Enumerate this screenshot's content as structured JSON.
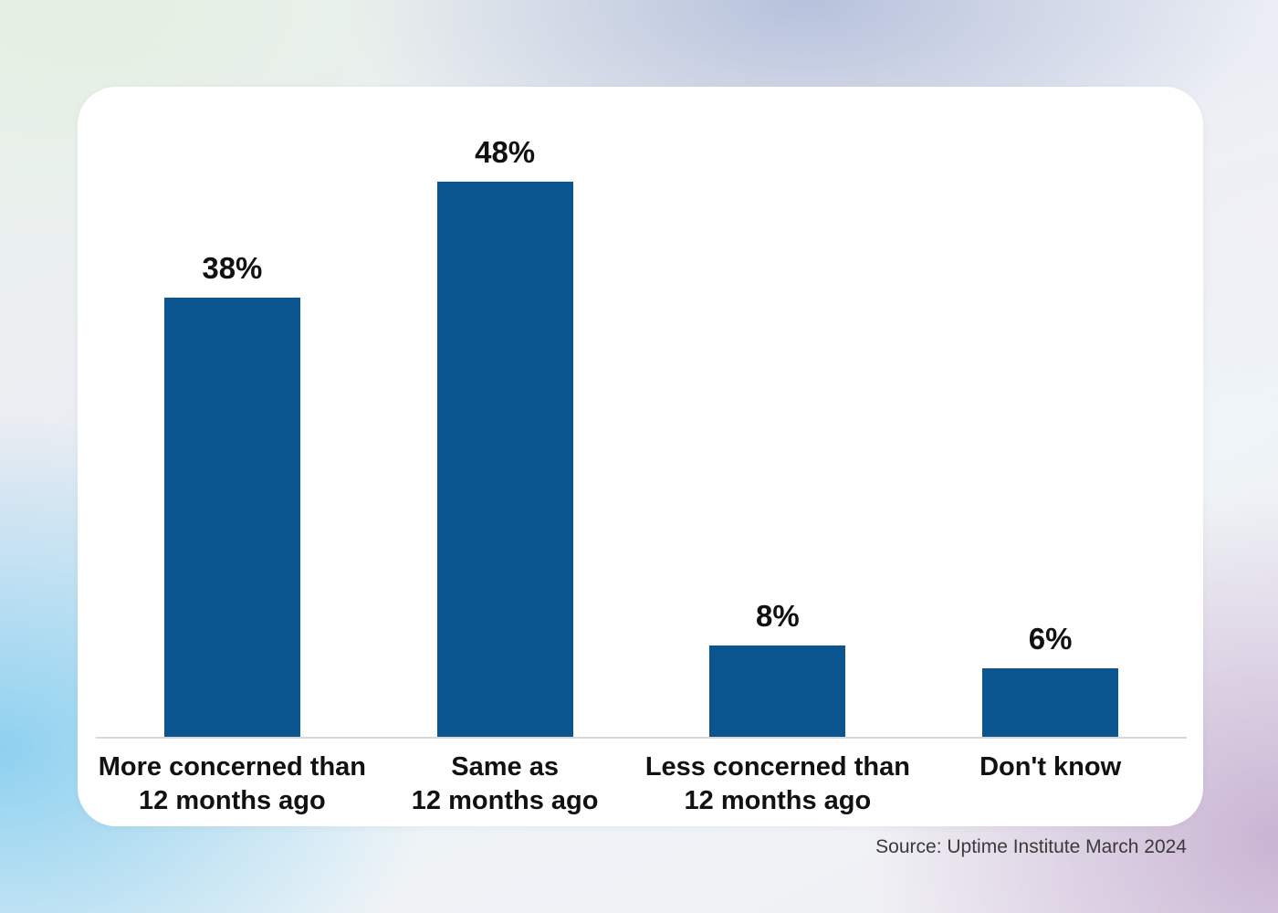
{
  "chart_data": {
    "type": "bar",
    "categories": [
      "More concerned than 12 months ago",
      "Same as 12 months ago",
      "Less concerned than 12 months ago",
      "Don't know"
    ],
    "category_lines": [
      [
        "More concerned than",
        "12 months ago"
      ],
      [
        "Same as",
        "12 months ago"
      ],
      [
        "Less concerned than",
        "12 months ago"
      ],
      [
        "Don't know",
        ""
      ]
    ],
    "values": [
      38,
      48,
      8,
      6
    ],
    "value_labels": [
      "38%",
      "48%",
      "8%",
      "6%"
    ],
    "ylim": [
      0,
      50
    ],
    "bar_color": "#0a5590",
    "grid": false,
    "legend_position": "none",
    "xlabel": "",
    "ylabel": ""
  },
  "source": {
    "text": "Source: Uptime Institute March 2024"
  },
  "colors": {
    "bar": "#0a5590",
    "axis_line": "#d8d8d8",
    "label_text": "#111111",
    "source_text": "#3a3a3a",
    "card_background": "#ffffff",
    "bg_top_left": "#e3efe1",
    "bg_top_center": "#b6c1db",
    "bg_bottom_left": "#8ed1f0",
    "bg_bottom_right": "#c9b4d3"
  }
}
